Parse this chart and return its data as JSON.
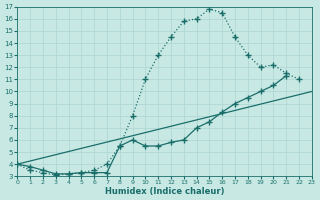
{
  "xlabel": "Humidex (Indice chaleur)",
  "bg_color": "#c8e8e4",
  "line_color": "#1a6e6a",
  "grid_color": "#b0d8d4",
  "xlim": [
    0,
    23
  ],
  "ylim": [
    3,
    17
  ],
  "xticks": [
    0,
    1,
    2,
    3,
    4,
    5,
    6,
    7,
    8,
    9,
    10,
    11,
    12,
    13,
    14,
    15,
    16,
    17,
    18,
    19,
    20,
    21,
    22,
    23
  ],
  "yticks": [
    3,
    4,
    5,
    6,
    7,
    8,
    9,
    10,
    11,
    12,
    13,
    14,
    15,
    16,
    17
  ],
  "curve1_x": [
    0,
    1,
    2,
    3,
    4,
    5,
    6,
    7,
    8,
    9,
    10,
    11,
    12,
    13,
    14,
    15,
    16,
    17,
    18,
    19,
    20,
    21,
    22,
    23
  ],
  "curve1_y": [
    4.0,
    3.5,
    3.3,
    3.1,
    3.2,
    3.3,
    3.5,
    4.0,
    5.5,
    8.0,
    11.0,
    13.0,
    14.5,
    15.8,
    16.0,
    16.8,
    16.5,
    14.5,
    13.0,
    12.0,
    12.2,
    11.5,
    11.0,
    null
  ],
  "curve2_x": [
    0,
    1,
    2,
    3,
    4,
    5,
    6,
    7,
    8,
    9,
    10,
    11,
    12,
    13,
    14,
    15,
    16,
    17,
    18,
    19,
    20,
    21,
    22,
    23
  ],
  "curve2_y": [
    4.0,
    3.8,
    3.5,
    3.2,
    3.2,
    3.3,
    3.3,
    3.3,
    5.5,
    6.0,
    5.5,
    5.5,
    5.8,
    6.0,
    7.0,
    7.5,
    8.3,
    9.0,
    9.5,
    10.0,
    10.5,
    11.3,
    null,
    null
  ],
  "curve3_x": [
    0,
    23
  ],
  "curve3_y": [
    4.0,
    10.0
  ]
}
